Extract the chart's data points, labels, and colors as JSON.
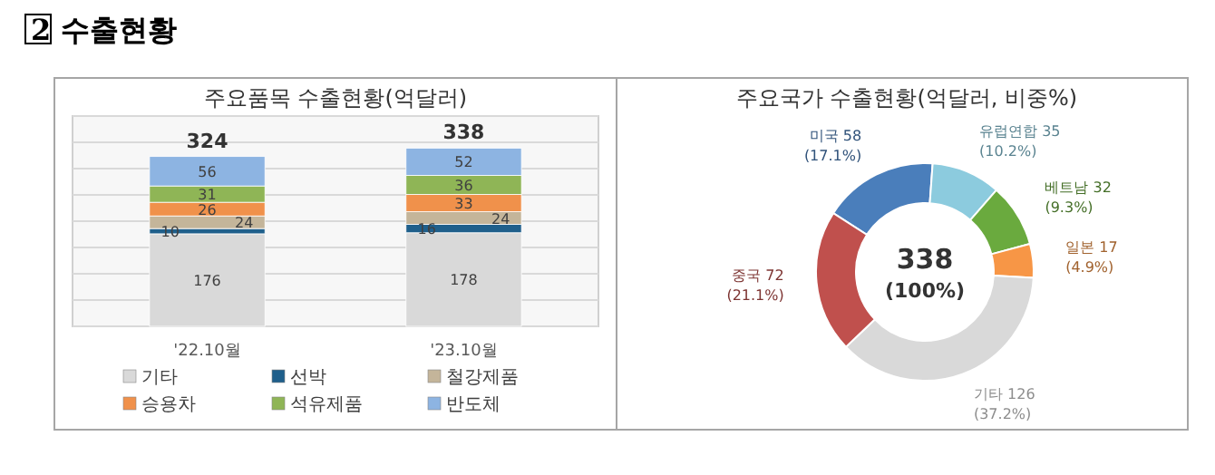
{
  "chart_data": [
    {
      "type": "bar",
      "title": "주요품목 수출현황(억달러)",
      "annotations": [
        "2 수출현황"
      ],
      "categories": [
        "'22.10월",
        "'23.10월"
      ],
      "stacked": true,
      "data_labels": true,
      "totals": [
        "324",
        "338"
      ],
      "ylim": [
        0,
        400
      ],
      "yticks": [
        {
          "value": 0,
          "label": null
        },
        {
          "value": 50,
          "label": null
        },
        {
          "value": 100,
          "label": null
        },
        {
          "value": 150,
          "label": null
        },
        {
          "value": 200,
          "label": null
        },
        {
          "value": 250,
          "label": null
        },
        {
          "value": 300,
          "label": null
        },
        {
          "value": 350,
          "label": null
        },
        {
          "value": 400,
          "label": null
        }
      ],
      "grid": "y",
      "tick_labels": "x",
      "legend": "bottom",
      "series": [
        {
          "name": "기타",
          "color": "#d9d9d9",
          "values": [
            176,
            178
          ]
        },
        {
          "name": "선박",
          "color": "#1f5f8b",
          "values": [
            10,
            16
          ]
        },
        {
          "name": "철강제품",
          "color": "#c4b59a",
          "values": [
            24,
            24
          ]
        },
        {
          "name": "승용차",
          "color": "#f0914b",
          "values": [
            26,
            33
          ]
        },
        {
          "name": "석유제품",
          "color": "#8fb556",
          "values": [
            31,
            36
          ]
        },
        {
          "name": "반도체",
          "color": "#8db4e2",
          "values": [
            56,
            52
          ]
        }
      ]
    },
    {
      "type": "donut",
      "title": "주요국가 수출현황(억달러, 비중%)",
      "annotations": [
        "338",
        "(100%)"
      ],
      "categories": [
        "미국",
        "유럽연합",
        "베트남",
        "일본",
        "기타",
        "중국"
      ],
      "values": [
        58,
        35,
        32,
        17,
        126,
        72
      ],
      "colors": [
        "#4a7ebb",
        "#8ccbde",
        "#6aaa3e",
        "#f79646",
        "#d9d9d9",
        "#c0504d"
      ],
      "value_labels": [
        "58 (17.1%)",
        "35 (10.2%)",
        "32 (9.3%)",
        "17 (4.9%)",
        "126 (37.2%)",
        "72 (21.1%)"
      ]
    }
  ]
}
